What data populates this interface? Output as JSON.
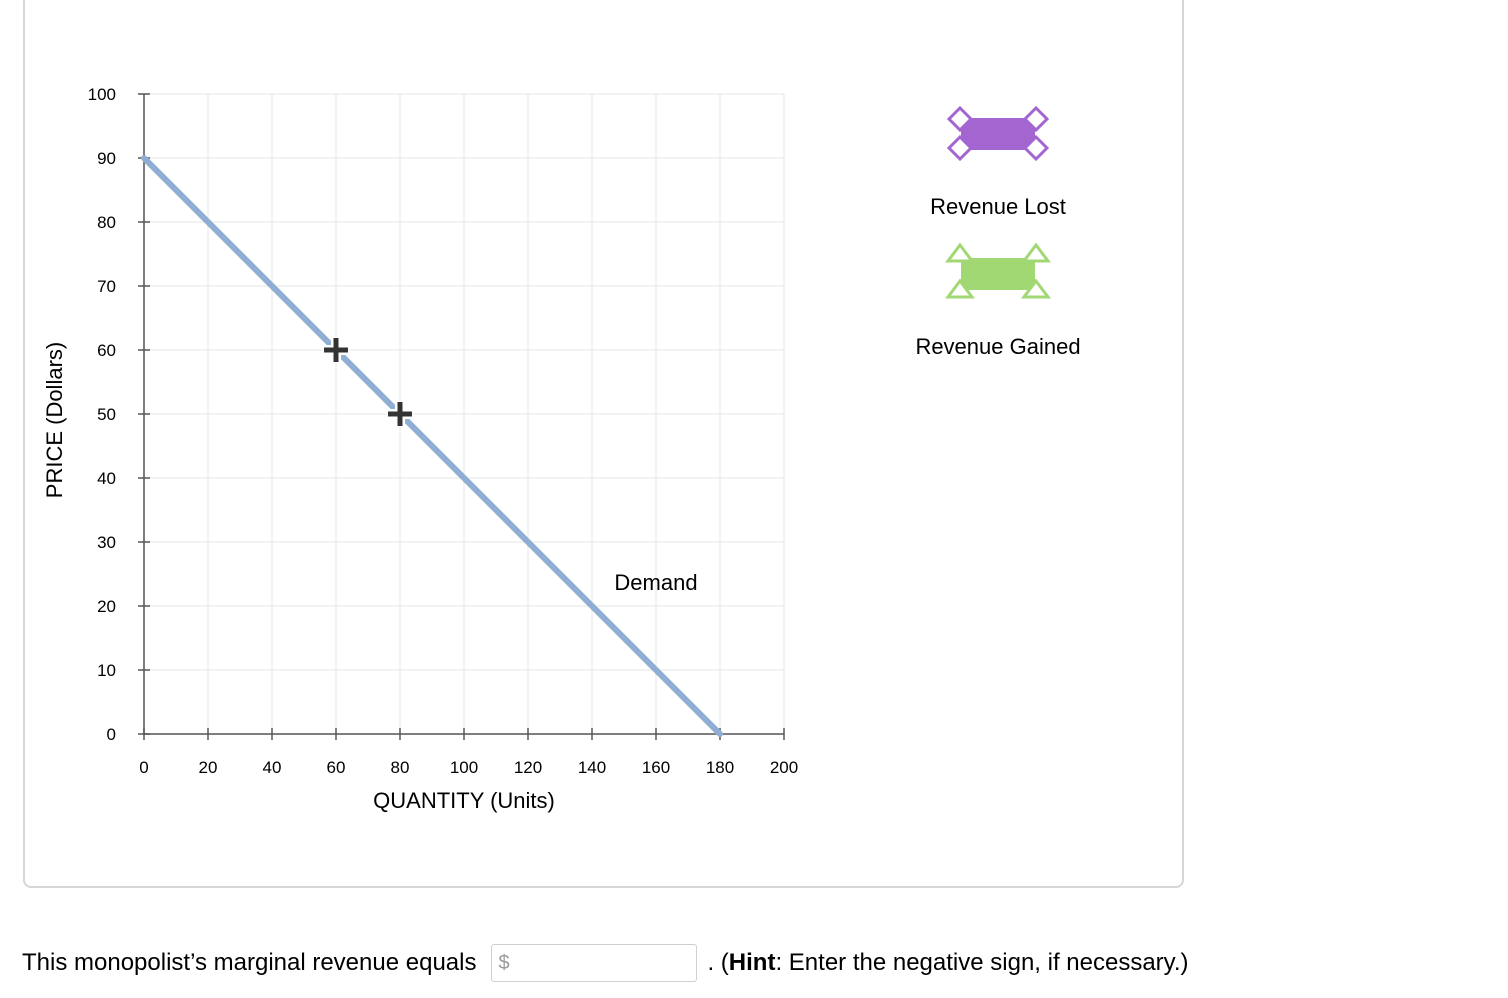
{
  "chart_data": {
    "type": "line",
    "xlabel": "QUANTITY (Units)",
    "ylabel": "PRICE (Dollars)",
    "xlim": [
      0,
      200
    ],
    "ylim": [
      0,
      100
    ],
    "xticks": [
      0,
      20,
      40,
      60,
      80,
      100,
      120,
      140,
      160,
      180,
      200
    ],
    "yticks": [
      0,
      10,
      20,
      30,
      40,
      50,
      60,
      70,
      80,
      90,
      100
    ],
    "grid": true,
    "series": [
      {
        "name": "Demand",
        "color": "#8eaed3",
        "x": [
          0,
          180
        ],
        "y": [
          90,
          0
        ]
      }
    ],
    "points": [
      {
        "x": 60,
        "y": 60,
        "marker": "plus",
        "color": "#333333"
      },
      {
        "x": 80,
        "y": 50,
        "marker": "plus",
        "color": "#333333"
      }
    ],
    "annotations": [
      {
        "text": "Demand",
        "x": 160,
        "y": 22.5
      }
    ],
    "legend": [
      {
        "label": "Revenue Lost",
        "color": "#a366d1",
        "marker": "diamond"
      },
      {
        "label": "Revenue Gained",
        "color": "#a1d874",
        "marker": "triangle"
      }
    ]
  },
  "question": {
    "prefix": "This monopolist’s marginal revenue equals",
    "currency": "$",
    "answer_value": "",
    "suffix_start": ". (",
    "hint_label": "Hint",
    "suffix_end": ": Enter the negative sign, if necessary.)"
  }
}
